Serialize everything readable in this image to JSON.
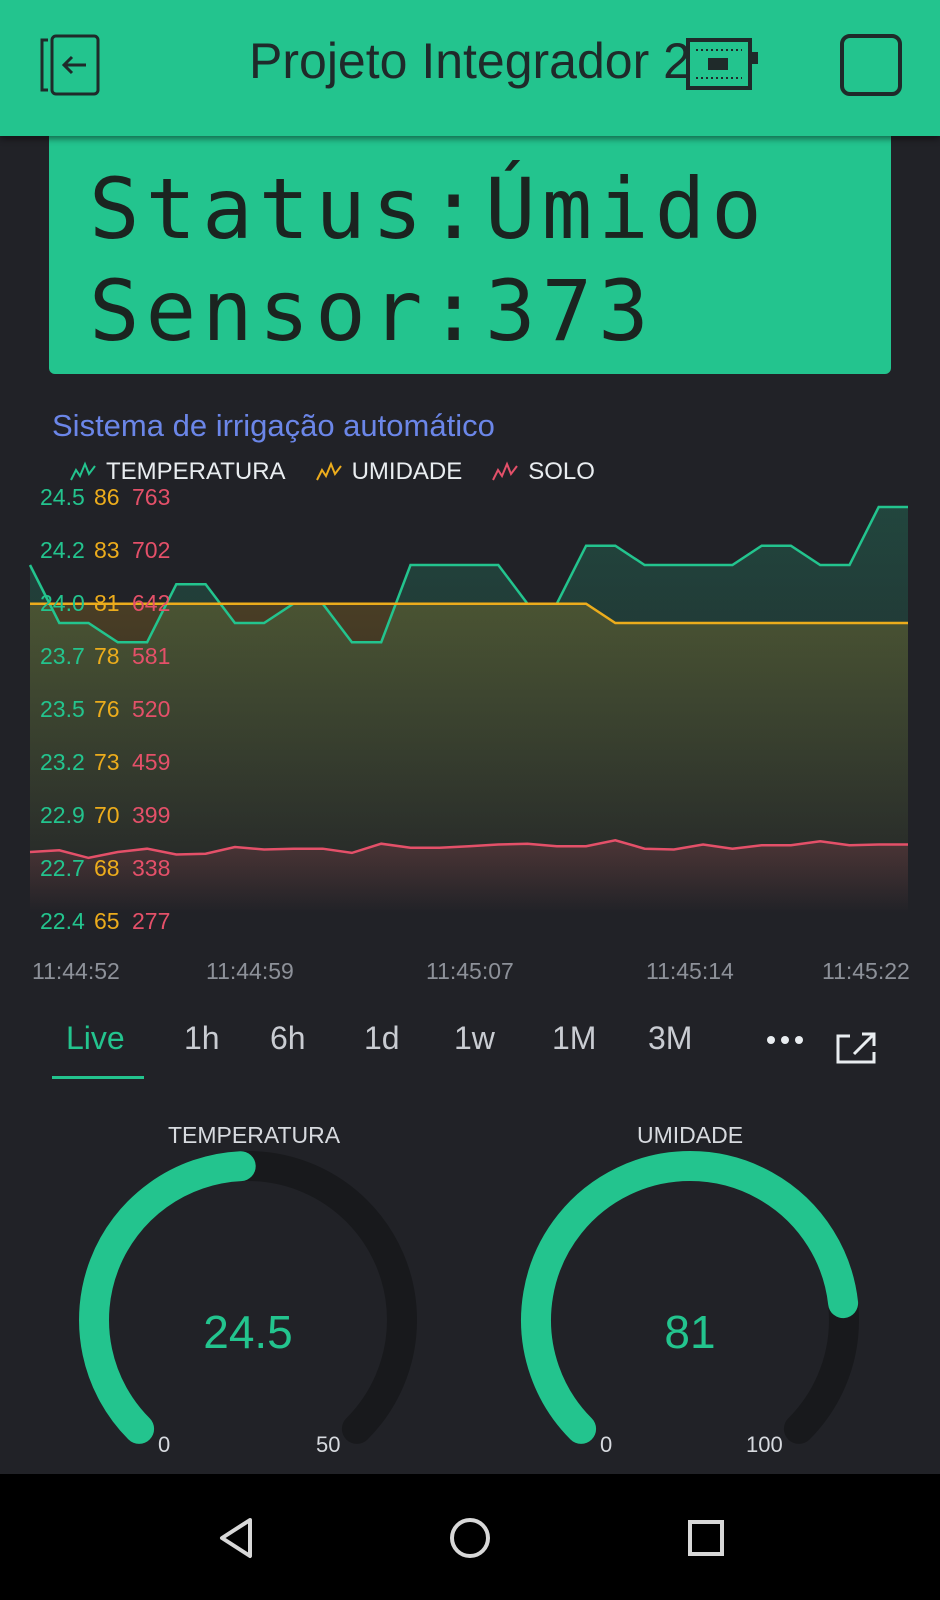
{
  "header": {
    "title": "Projeto Integrador 2",
    "icons": [
      "exit-icon",
      "device-board-icon",
      "stop-square-icon"
    ]
  },
  "lcd": {
    "line1": "Status:Úmido",
    "line2": "Sensor:373"
  },
  "chart": {
    "title": "Sistema de irrigação automático",
    "legend": [
      {
        "name": "TEMPERATURA",
        "color": "#23c48e"
      },
      {
        "name": "UMIDADE",
        "color": "#ecac1c"
      },
      {
        "name": "SOLO",
        "color": "#e45069"
      }
    ],
    "y_ticks": [
      {
        "t": "24.5",
        "h": "86",
        "s": "763"
      },
      {
        "t": "24.2",
        "h": "83",
        "s": "702"
      },
      {
        "t": "24.0",
        "h": "81",
        "s": "642"
      },
      {
        "t": "23.7",
        "h": "78",
        "s": "581"
      },
      {
        "t": "23.5",
        "h": "76",
        "s": "520"
      },
      {
        "t": "23.2",
        "h": "73",
        "s": "459"
      },
      {
        "t": "22.9",
        "h": "70",
        "s": "399"
      },
      {
        "t": "22.7",
        "h": "68",
        "s": "338"
      },
      {
        "t": "22.4",
        "h": "65",
        "s": "277"
      }
    ],
    "x_ticks": [
      "11:44:52",
      "11:44:59",
      "11:45:07",
      "11:45:14",
      "11:45:22"
    ]
  },
  "chart_data": {
    "type": "line",
    "title": "Sistema de irrigação automático",
    "x": [
      "11:44:52",
      "11:44:53",
      "11:44:54",
      "11:44:55",
      "11:44:56",
      "11:44:57",
      "11:44:58",
      "11:44:59",
      "11:45:00",
      "11:45:01",
      "11:45:02",
      "11:45:03",
      "11:45:04",
      "11:45:05",
      "11:45:06",
      "11:45:07",
      "11:45:08",
      "11:45:09",
      "11:45:10",
      "11:45:11",
      "11:45:12",
      "11:45:13",
      "11:45:14",
      "11:45:15",
      "11:45:16",
      "11:45:17",
      "11:45:18",
      "11:45:19",
      "11:45:20",
      "11:45:21",
      "11:45:22"
    ],
    "series": [
      {
        "name": "TEMPERATURA",
        "color": "#23c48e",
        "ylim": [
          22.4,
          24.5
        ],
        "values": [
          24.2,
          23.9,
          23.9,
          23.8,
          23.8,
          24.1,
          24.1,
          23.9,
          23.9,
          24.0,
          24.0,
          23.8,
          23.8,
          24.2,
          24.2,
          24.2,
          24.2,
          24.0,
          24.0,
          24.3,
          24.3,
          24.2,
          24.2,
          24.2,
          24.2,
          24.3,
          24.3,
          24.2,
          24.2,
          24.5,
          24.5
        ]
      },
      {
        "name": "UMIDADE",
        "color": "#ecac1c",
        "ylim": [
          65,
          86
        ],
        "values": [
          81,
          81,
          81,
          81,
          81,
          81,
          81,
          81,
          81,
          81,
          81,
          81,
          81,
          81,
          81,
          81,
          81,
          81,
          81,
          81,
          80,
          80,
          80,
          80,
          80,
          80,
          80,
          80,
          80,
          80,
          80
        ]
      },
      {
        "name": "SOLO",
        "color": "#e45069",
        "ylim": [
          277,
          763
        ],
        "values": [
          350,
          352,
          343,
          350,
          354,
          347,
          348,
          356,
          353,
          354,
          354,
          349,
          360,
          355,
          355,
          357,
          359,
          360,
          357,
          357,
          364,
          354,
          353,
          359,
          354,
          358,
          358,
          363,
          358,
          359,
          359
        ]
      }
    ],
    "grid": false,
    "legend_position": "top-left"
  },
  "tabs": {
    "items": [
      "Live",
      "1h",
      "6h",
      "1d",
      "1w",
      "1M",
      "3M"
    ],
    "active": "Live"
  },
  "gauges": [
    {
      "label": "TEMPERATURA",
      "value": "24.5",
      "min": "0",
      "max": "50",
      "fraction": 0.49,
      "color": "#23c48e"
    },
    {
      "label": "UMIDADE",
      "value": "81",
      "min": "0",
      "max": "100",
      "fraction": 0.81,
      "color": "#23c48e"
    }
  ],
  "navbar": {
    "icons": [
      "back-icon",
      "home-icon",
      "recents-icon"
    ]
  }
}
